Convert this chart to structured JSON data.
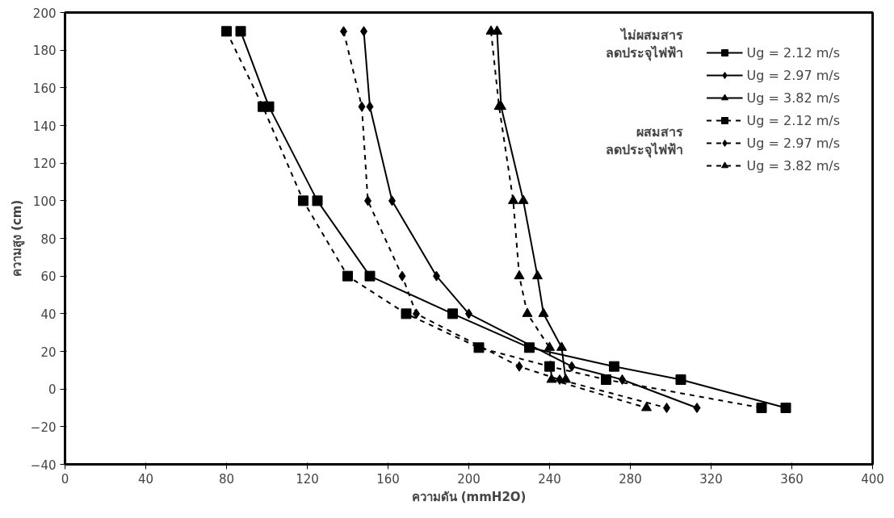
{
  "chart_data": {
    "type": "line",
    "xlabel": "ความดัน (mmH2O)",
    "ylabel": "ความสูง (cm)",
    "xlim": [
      0,
      400
    ],
    "xticks": [
      0,
      40,
      80,
      120,
      160,
      200,
      240,
      280,
      320,
      360,
      400
    ],
    "ylim": [
      -40,
      200
    ],
    "yticks": [
      -40,
      -20,
      0,
      20,
      40,
      60,
      80,
      100,
      120,
      140,
      160,
      180,
      200
    ],
    "grid": false,
    "legend": "top right",
    "annotations": [
      "ไม่ผสมสาร\nลดประจุไฟฟ้า",
      "ผสมสาร\nลดประจุไฟฟ้า"
    ],
    "series": [
      {
        "name": "Ug = 2.12 m/s",
        "color": "#000000",
        "marker": "square",
        "line_style": "solid",
        "x": [
          87,
          101,
          125,
          151,
          192,
          230,
          272,
          305,
          357
        ],
        "values": [
          190,
          150,
          100,
          60,
          40,
          22,
          12,
          5,
          -10
        ]
      },
      {
        "name": "Ug = 2.97 m/s",
        "color": "#000000",
        "marker": "diamond",
        "line_style": "solid",
        "x": [
          148,
          151,
          162,
          184,
          200,
          251,
          276,
          313
        ],
        "values": [
          190,
          150,
          100,
          60,
          40,
          12,
          5,
          -10
        ]
      },
      {
        "name": "Ug = 3.82 m/s",
        "color": "#000000",
        "marker": "triangle",
        "line_style": "solid",
        "x": [
          214,
          216,
          227,
          234,
          237,
          246,
          248
        ],
        "values": [
          190,
          150,
          100,
          60,
          40,
          22,
          5
        ]
      },
      {
        "name": "Ug = 2.12 m/s",
        "color": "#000000",
        "marker": "square",
        "line_style": "dashed",
        "x": [
          80,
          98,
          118,
          140,
          169,
          205,
          240,
          268,
          345
        ],
        "values": [
          190,
          150,
          100,
          60,
          40,
          22,
          12,
          5,
          -10
        ]
      },
      {
        "name": "Ug = 2.97 m/s",
        "color": "#000000",
        "marker": "diamond",
        "line_style": "dashed",
        "x": [
          138,
          147,
          150,
          167,
          174,
          225,
          245,
          298
        ],
        "values": [
          190,
          150,
          100,
          60,
          40,
          12,
          5,
          -10
        ]
      },
      {
        "name": "Ug = 3.82 m/s",
        "color": "#000000",
        "marker": "triangle",
        "line_style": "dashed",
        "x": [
          211,
          215,
          222,
          225,
          229,
          240,
          241,
          288
        ],
        "values": [
          190,
          150,
          100,
          60,
          40,
          22,
          5,
          -10
        ]
      }
    ]
  }
}
